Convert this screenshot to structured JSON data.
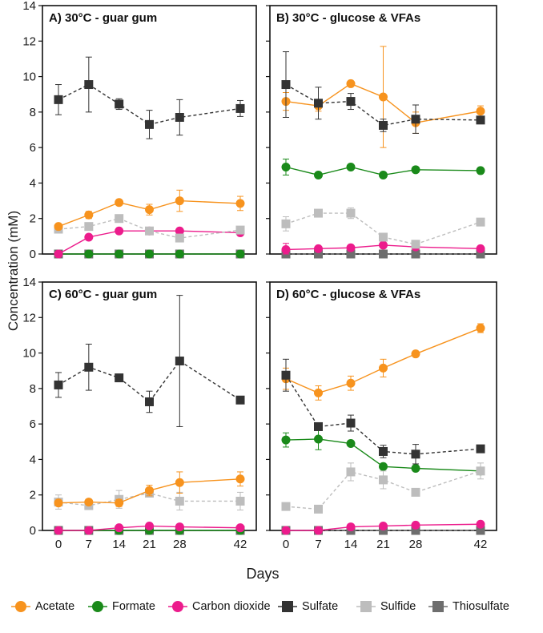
{
  "figure": {
    "ylabel": "Concentration (mM)",
    "xlabel": "Days"
  },
  "legend": [
    {
      "key": "acetate",
      "label": "Acetate",
      "marker": "circle",
      "color": "#f7931e"
    },
    {
      "key": "formate",
      "label": "Formate",
      "marker": "circle",
      "color": "#1a8a1a"
    },
    {
      "key": "co2",
      "label": "Carbon dioxide",
      "marker": "circle",
      "color": "#ec1c8c"
    },
    {
      "key": "sulfate",
      "label": "Sulfate",
      "marker": "square",
      "color": "#333333"
    },
    {
      "key": "sulfide",
      "label": "Sulfide",
      "marker": "square",
      "color": "#bdbdbd"
    },
    {
      "key": "thiosulfate",
      "label": "Thiosulfate",
      "marker": "square",
      "color": "#6e6e6e"
    }
  ],
  "chart_data": [
    {
      "type": "line",
      "title": "A) 30°C - guar gum",
      "xlabel": "Days",
      "ylabel": "Concentration (mM)",
      "x": [
        0,
        7,
        14,
        21,
        28,
        42
      ],
      "xticks": [
        "0",
        "7",
        "14",
        "21",
        "28",
        "42"
      ],
      "yticks": [
        "0",
        "2",
        "4",
        "6",
        "8",
        "10",
        "12",
        "14"
      ],
      "ylim": [
        0,
        14
      ],
      "series": [
        {
          "key": "sulfate",
          "name": "Sulfate",
          "values": [
            8.7,
            9.55,
            8.45,
            7.3,
            7.7,
            8.2
          ],
          "err": [
            0.85,
            1.55,
            0.3,
            0.8,
            1.0,
            0.45
          ]
        },
        {
          "key": "acetate",
          "name": "Acetate",
          "values": [
            1.55,
            2.2,
            2.9,
            2.5,
            3.0,
            2.85
          ],
          "err": [
            0.15,
            0.2,
            0.15,
            0.3,
            0.6,
            0.4
          ]
        },
        {
          "key": "sulfide",
          "name": "Sulfide",
          "values": [
            1.4,
            1.55,
            2.0,
            1.3,
            0.9,
            1.35
          ],
          "err": [
            0.2,
            0.15,
            0.2,
            0.15,
            0.1,
            0.15
          ]
        },
        {
          "key": "co2",
          "name": "Carbon dioxide",
          "values": [
            0.0,
            0.95,
            1.3,
            1.3,
            1.3,
            1.2
          ],
          "err": [
            0,
            0.1,
            0.1,
            0.1,
            0.05,
            0.05
          ]
        },
        {
          "key": "formate",
          "name": "Formate",
          "values": [
            0,
            0,
            0,
            0,
            0,
            0
          ],
          "err": [
            0,
            0,
            0,
            0,
            0,
            0
          ]
        },
        {
          "key": "thiosulfate",
          "name": "Thiosulfate",
          "values": [
            0,
            0,
            0,
            0,
            0,
            0
          ],
          "err": [
            0,
            0,
            0,
            0,
            0,
            0
          ]
        }
      ]
    },
    {
      "type": "line",
      "title": "B) 30°C - glucose & VFAs",
      "xlabel": "Days",
      "ylabel": "Concentration (mM)",
      "x": [
        0,
        7,
        14,
        21,
        28,
        42
      ],
      "xticks": [
        "0",
        "7",
        "14",
        "21",
        "28",
        "42"
      ],
      "yticks": [
        "0",
        "2",
        "4",
        "6",
        "8",
        "10",
        "12",
        "14"
      ],
      "ylim": [
        0,
        14
      ],
      "series": [
        {
          "key": "sulfate",
          "name": "Sulfate",
          "values": [
            9.55,
            8.5,
            8.6,
            7.25,
            7.6,
            7.55
          ],
          "err": [
            1.85,
            0.9,
            0.45,
            0.35,
            0.8,
            0.2
          ]
        },
        {
          "key": "acetate",
          "name": "Acetate",
          "values": [
            8.6,
            8.35,
            9.6,
            8.85,
            7.4,
            8.05
          ],
          "err": [
            0.5,
            0.3,
            0.1,
            2.85,
            0.6,
            0.3
          ]
        },
        {
          "key": "formate",
          "name": "Formate",
          "values": [
            4.9,
            4.45,
            4.9,
            4.45,
            4.75,
            4.7
          ],
          "err": [
            0.45,
            0.1,
            0.1,
            0.15,
            0.15,
            0.1
          ]
        },
        {
          "key": "sulfide",
          "name": "Sulfide",
          "values": [
            1.7,
            2.3,
            2.3,
            0.95,
            0.55,
            1.8
          ],
          "err": [
            0.4,
            0.2,
            0.3,
            0.1,
            0.05,
            0.15
          ]
        },
        {
          "key": "co2",
          "name": "Carbon dioxide",
          "values": [
            0.25,
            0.3,
            0.35,
            0.5,
            0.4,
            0.3
          ],
          "err": [
            0.35,
            0.1,
            0.1,
            0.15,
            0.05,
            0.05
          ]
        },
        {
          "key": "thiosulfate",
          "name": "Thiosulfate",
          "values": [
            0,
            0,
            0,
            0,
            0,
            0
          ],
          "err": [
            0,
            0,
            0,
            0,
            0,
            0
          ]
        }
      ]
    },
    {
      "type": "line",
      "title": "C) 60°C - guar gum",
      "xlabel": "Days",
      "ylabel": "Concentration (mM)",
      "x": [
        0,
        7,
        14,
        21,
        28,
        42
      ],
      "xticks": [
        "0",
        "7",
        "14",
        "21",
        "28",
        "42"
      ],
      "yticks": [
        "0",
        "2",
        "4",
        "6",
        "8",
        "10",
        "12",
        "14"
      ],
      "ylim": [
        0,
        14
      ],
      "series": [
        {
          "key": "sulfate",
          "name": "Sulfate",
          "values": [
            8.2,
            9.2,
            8.6,
            7.25,
            9.55,
            7.35
          ],
          "err": [
            0.7,
            1.3,
            0.15,
            0.6,
            3.7,
            0.1
          ]
        },
        {
          "key": "acetate",
          "name": "Acetate",
          "values": [
            1.55,
            1.6,
            1.55,
            2.25,
            2.7,
            2.9
          ],
          "err": [
            0.1,
            0.1,
            0.2,
            0.3,
            0.6,
            0.4
          ]
        },
        {
          "key": "sulfide",
          "name": "Sulfide",
          "values": [
            1.6,
            1.4,
            1.75,
            2.1,
            1.65,
            1.65
          ],
          "err": [
            0.4,
            0.2,
            0.5,
            0.2,
            0.5,
            0.5
          ]
        },
        {
          "key": "co2",
          "name": "Carbon dioxide",
          "values": [
            0.0,
            0.0,
            0.15,
            0.25,
            0.2,
            0.15
          ],
          "err": [
            0,
            0,
            0.05,
            0.05,
            0.05,
            0.05
          ]
        },
        {
          "key": "formate",
          "name": "Formate",
          "values": [
            0,
            0,
            0,
            0,
            0,
            0
          ],
          "err": [
            0,
            0,
            0,
            0,
            0,
            0
          ]
        },
        {
          "key": "thiosulfate",
          "name": "Thiosulfate",
          "values": [
            0,
            0,
            0,
            0,
            0,
            0
          ],
          "err": [
            0,
            0,
            0,
            0,
            0,
            0
          ]
        }
      ]
    },
    {
      "type": "line",
      "title": "D) 60°C - glucose & VFAs",
      "xlabel": "Days",
      "ylabel": "Concentration (mM)",
      "x": [
        0,
        7,
        14,
        21,
        28,
        42
      ],
      "xticks": [
        "0",
        "7",
        "14",
        "21",
        "28",
        "42"
      ],
      "yticks": [
        "0",
        "2",
        "4",
        "6",
        "8",
        "10",
        "12",
        "14"
      ],
      "ylim": [
        0,
        14
      ],
      "series": [
        {
          "key": "acetate",
          "name": "Acetate",
          "values": [
            8.55,
            7.75,
            8.3,
            9.15,
            9.95,
            11.4
          ],
          "err": [
            0.6,
            0.4,
            0.4,
            0.5,
            0.15,
            0.25
          ]
        },
        {
          "key": "sulfate",
          "name": "Sulfate",
          "values": [
            8.75,
            5.85,
            6.05,
            4.45,
            4.3,
            4.6
          ],
          "err": [
            0.9,
            0.2,
            0.45,
            0.35,
            0.55,
            0.15
          ]
        },
        {
          "key": "formate",
          "name": "Formate",
          "values": [
            5.1,
            5.15,
            4.9,
            3.6,
            3.5,
            3.35
          ],
          "err": [
            0.4,
            0.6,
            0.1,
            0.15,
            0.1,
            0.1
          ]
        },
        {
          "key": "sulfide",
          "name": "Sulfide",
          "values": [
            1.35,
            1.2,
            3.3,
            2.85,
            2.15,
            3.35
          ],
          "err": [
            0.1,
            0.1,
            0.5,
            0.5,
            0.2,
            0.45
          ]
        },
        {
          "key": "co2",
          "name": "Carbon dioxide",
          "values": [
            0.0,
            0.0,
            0.2,
            0.25,
            0.3,
            0.35
          ],
          "err": [
            0,
            0,
            0.05,
            0.1,
            0.05,
            0.15
          ]
        },
        {
          "key": "thiosulfate",
          "name": "Thiosulfate",
          "values": [
            0,
            0,
            0,
            0,
            0,
            0
          ],
          "err": [
            0,
            0,
            0,
            0,
            0,
            0
          ]
        }
      ]
    }
  ]
}
